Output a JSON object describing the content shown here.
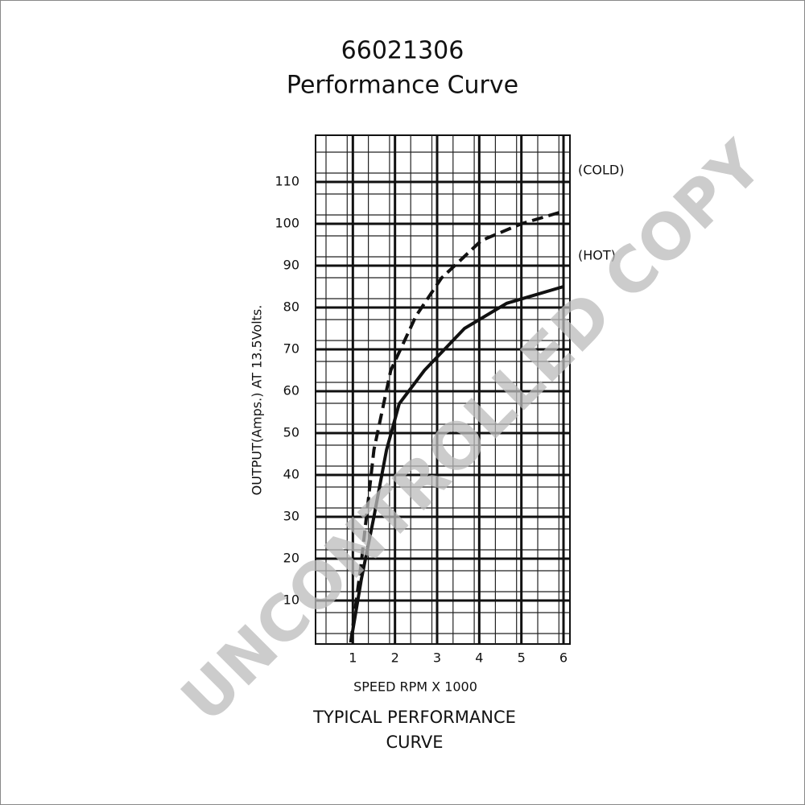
{
  "chart_data": {
    "type": "line",
    "title": "66021306",
    "subtitle": "Performance Curve",
    "y_label": "OUTPUT(Amps.) AT 13.5Volts.",
    "x_label": "SPEED RPM X 1000",
    "caption": "TYPICAL PERFORMANCE CURVE",
    "watermark": "UNCONTROLLED COPY",
    "xlim": [
      0,
      6
    ],
    "ylim": [
      0,
      120
    ],
    "xticks": [
      1,
      2,
      3,
      4,
      5,
      6
    ],
    "yticks": [
      10,
      20,
      30,
      40,
      50,
      60,
      70,
      80,
      90,
      100,
      110
    ],
    "grid": true,
    "series": [
      {
        "name": "(COLD)",
        "color": "#111111",
        "line_style": "dashed",
        "x": [
          0.95,
          1.2,
          1.5,
          1.9,
          2.5,
          3.1,
          4.05,
          5.0,
          6.0
        ],
        "values": [
          0,
          19,
          46,
          65,
          78,
          87,
          96,
          100,
          103
        ]
      },
      {
        "name": "(HOT)",
        "color": "#111111",
        "line_style": "solid",
        "x": [
          0.95,
          1.2,
          1.5,
          1.8,
          2.1,
          2.7,
          3.65,
          4.65,
          6.0
        ],
        "values": [
          0,
          15,
          30,
          46,
          57,
          65,
          75,
          81,
          85
        ]
      }
    ]
  }
}
